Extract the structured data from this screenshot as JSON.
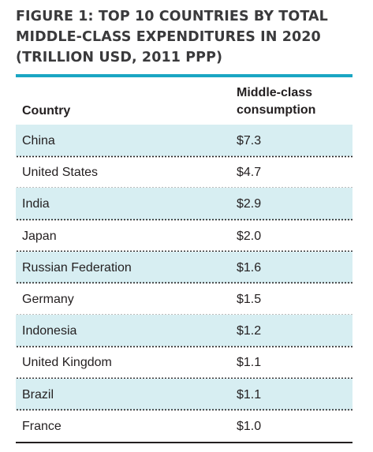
{
  "figure": {
    "title_lines": [
      "FIGURE 1: TOP 10 COUNTRIES BY TOTAL",
      "MIDDLE-CLASS EXPENDITURES IN 2020",
      "(TRILLION USD, 2011 PPP)"
    ],
    "header": {
      "country": "Country",
      "value_lines": [
        "Middle-class",
        "consumption"
      ]
    },
    "colors": {
      "accent_rule": "#1aa6c3",
      "row_shade": "#d7eef2",
      "text": "#231f20"
    }
  },
  "chart_data": {
    "type": "table",
    "title": "FIGURE 1: TOP 10 COUNTRIES BY TOTAL MIDDLE-CLASS EXPENDITURES IN 2020 (TRILLION USD, 2011 PPP)",
    "columns": [
      "Country",
      "Middle-class consumption"
    ],
    "rows": [
      {
        "country": "China",
        "value": 7.3,
        "label": "$7.3"
      },
      {
        "country": "United States",
        "value": 4.7,
        "label": "$4.7"
      },
      {
        "country": "India",
        "value": 2.9,
        "label": "$2.9"
      },
      {
        "country": "Japan",
        "value": 2.0,
        "label": "$2.0"
      },
      {
        "country": "Russian Federation",
        "value": 1.6,
        "label": "$1.6"
      },
      {
        "country": "Germany",
        "value": 1.5,
        "label": "$1.5"
      },
      {
        "country": "Indonesia",
        "value": 1.2,
        "label": "$1.2"
      },
      {
        "country": "United Kingdom",
        "value": 1.1,
        "label": "$1.1"
      },
      {
        "country": "Brazil",
        "value": 1.1,
        "label": "$1.1"
      },
      {
        "country": "France",
        "value": 1.0,
        "label": "$1.0"
      }
    ]
  }
}
